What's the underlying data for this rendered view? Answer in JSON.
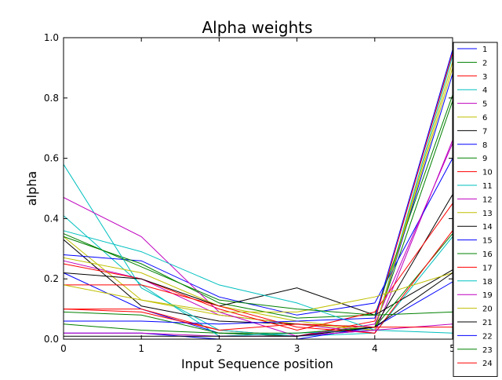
{
  "chart_data": {
    "type": "line",
    "title": "Alpha weights",
    "xlabel": "Input Sequence position",
    "ylabel": "alpha",
    "x": [
      0,
      1,
      2,
      3,
      4,
      5
    ],
    "xlim": [
      0,
      5
    ],
    "ylim": [
      0,
      1
    ],
    "xticks": [
      "0",
      "1",
      "2",
      "3",
      "4",
      "5"
    ],
    "yticks": [
      "0.0",
      "0.2",
      "0.4",
      "0.6",
      "0.8",
      "1.0"
    ],
    "grid": false,
    "legend_position": "right",
    "series": [
      {
        "name": "1",
        "color": "#0000ff",
        "values": [
          0.22,
          0.1,
          0.02,
          0.01,
          0.03,
          0.88
        ]
      },
      {
        "name": "2",
        "color": "#008000",
        "values": [
          0.05,
          0.03,
          0.02,
          0.01,
          0.04,
          0.79
        ]
      },
      {
        "name": "3",
        "color": "#ff0000",
        "values": [
          0.1,
          0.1,
          0.03,
          0.01,
          0.06,
          0.95
        ]
      },
      {
        "name": "4",
        "color": "#00bfbf",
        "values": [
          0.41,
          0.18,
          0.01,
          0.02,
          0.03,
          0.94
        ]
      },
      {
        "name": "5",
        "color": "#bf00bf",
        "values": [
          0.26,
          0.2,
          0.08,
          0.05,
          0.02,
          0.66
        ]
      },
      {
        "name": "6",
        "color": "#bfbf00",
        "values": [
          0.34,
          0.13,
          0.08,
          0.05,
          0.03,
          0.92
        ]
      },
      {
        "name": "7",
        "color": "#000000",
        "values": [
          0.33,
          0.11,
          0.06,
          0.05,
          0.04,
          0.48
        ]
      },
      {
        "name": "8",
        "color": "#0000ff",
        "values": [
          0.28,
          0.26,
          0.14,
          0.08,
          0.12,
          0.6
        ]
      },
      {
        "name": "9",
        "color": "#008000",
        "values": [
          0.34,
          0.25,
          0.12,
          0.07,
          0.08,
          0.81
        ]
      },
      {
        "name": "10",
        "color": "#ff0000",
        "values": [
          0.25,
          0.2,
          0.1,
          0.03,
          0.09,
          0.45
        ]
      },
      {
        "name": "11",
        "color": "#00bfbf",
        "values": [
          0.58,
          0.17,
          0.03,
          0.01,
          0.02,
          0.34
        ]
      },
      {
        "name": "12",
        "color": "#bf00bf",
        "values": [
          0.47,
          0.34,
          0.09,
          0.01,
          0.05,
          0.65
        ]
      },
      {
        "name": "13",
        "color": "#bfbf00",
        "values": [
          0.27,
          0.22,
          0.11,
          0.06,
          0.03,
          0.9
        ]
      },
      {
        "name": "14",
        "color": "#000000",
        "values": [
          0.22,
          0.2,
          0.11,
          0.17,
          0.08,
          0.23
        ]
      },
      {
        "name": "15",
        "color": "#0000ff",
        "values": [
          0.02,
          0.02,
          0.0,
          0.0,
          0.04,
          0.19
        ]
      },
      {
        "name": "16",
        "color": "#008000",
        "values": [
          0.09,
          0.08,
          0.02,
          0.02,
          0.04,
          0.35
        ]
      },
      {
        "name": "17",
        "color": "#ff0000",
        "values": [
          0.18,
          0.18,
          0.11,
          0.04,
          0.02,
          0.36
        ]
      },
      {
        "name": "18",
        "color": "#00bfbf",
        "values": [
          0.36,
          0.29,
          0.18,
          0.12,
          0.03,
          0.02
        ]
      },
      {
        "name": "19",
        "color": "#bf00bf",
        "values": [
          0.02,
          0.02,
          0.01,
          0.01,
          0.03,
          0.05
        ]
      },
      {
        "name": "20",
        "color": "#bfbf00",
        "values": [
          0.18,
          0.13,
          0.09,
          0.09,
          0.14,
          0.22
        ]
      },
      {
        "name": "21",
        "color": "#000000",
        "values": [
          0.01,
          0.01,
          0.01,
          0.01,
          0.04,
          0.22
        ]
      },
      {
        "name": "22",
        "color": "#0000ff",
        "values": [
          0.06,
          0.06,
          0.05,
          0.06,
          0.07,
          0.96
        ]
      },
      {
        "name": "23",
        "color": "#008000",
        "values": [
          0.35,
          0.24,
          0.13,
          0.1,
          0.08,
          0.09
        ]
      },
      {
        "name": "24",
        "color": "#ff0000",
        "values": [
          0.1,
          0.09,
          0.03,
          0.05,
          0.04,
          0.04
        ]
      }
    ]
  }
}
